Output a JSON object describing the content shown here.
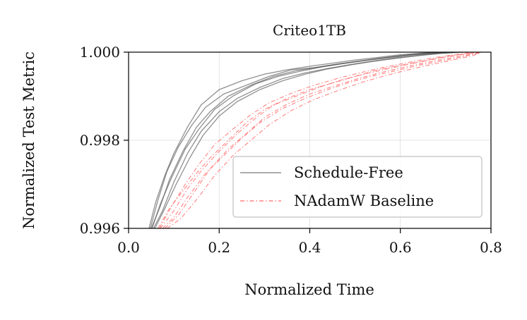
{
  "chart_data": {
    "type": "line",
    "title": "Criteo1TB",
    "xlabel": "Normalized Time",
    "ylabel": "Normalized Test Metric",
    "xlim": [
      0.0,
      0.8
    ],
    "ylim": [
      0.996,
      1.0
    ],
    "xticks": [
      "0.0",
      "0.2",
      "0.4",
      "0.6",
      "0.8"
    ],
    "xtick_values": [
      0.0,
      0.2,
      0.4,
      0.6,
      0.8
    ],
    "yticks": [
      "0.996",
      "0.998",
      "1.000"
    ],
    "ytick_values": [
      0.996,
      0.998,
      1.0
    ],
    "grid": true,
    "legend_position": "lower-right",
    "series": [
      {
        "name": "Schedule-Free",
        "color": "#555555",
        "style": "solid",
        "shown_in_legend": true,
        "x": [
          0.045,
          0.06,
          0.08,
          0.1,
          0.13,
          0.16,
          0.2,
          0.25,
          0.3,
          0.35,
          0.4,
          0.45,
          0.5,
          0.55,
          0.6,
          0.65,
          0.7
        ],
        "values": [
          0.996,
          0.9966,
          0.9972,
          0.9977,
          0.9983,
          0.9988,
          0.99915,
          0.99935,
          0.9995,
          0.9996,
          0.99968,
          0.99975,
          0.99982,
          0.99988,
          0.99994,
          0.99998,
          1.0
        ]
      },
      {
        "name": "Schedule-Free run 2",
        "color": "#555555",
        "style": "solid",
        "shown_in_legend": false,
        "x": [
          0.05,
          0.07,
          0.09,
          0.12,
          0.15,
          0.18,
          0.22,
          0.27,
          0.32,
          0.37,
          0.42,
          0.47,
          0.52,
          0.57,
          0.62,
          0.67,
          0.72
        ],
        "values": [
          0.996,
          0.9965,
          0.9971,
          0.99775,
          0.9983,
          0.99865,
          0.999,
          0.99925,
          0.99945,
          0.99958,
          0.99966,
          0.99974,
          0.99981,
          0.99988,
          0.99994,
          0.99998,
          1.0
        ]
      },
      {
        "name": "Schedule-Free run 3",
        "color": "#555555",
        "style": "solid",
        "shown_in_legend": false,
        "x": [
          0.055,
          0.075,
          0.1,
          0.13,
          0.16,
          0.2,
          0.24,
          0.29,
          0.34,
          0.39,
          0.44,
          0.49,
          0.54,
          0.59,
          0.64,
          0.69,
          0.73
        ],
        "values": [
          0.996,
          0.9964,
          0.99705,
          0.9977,
          0.9982,
          0.99865,
          0.99895,
          0.9992,
          0.9994,
          0.99953,
          0.99963,
          0.99972,
          0.9998,
          0.99987,
          0.99993,
          0.99998,
          1.0
        ]
      },
      {
        "name": "Schedule-Free run 4",
        "color": "#555555",
        "style": "solid",
        "shown_in_legend": false,
        "x": [
          0.048,
          0.065,
          0.085,
          0.11,
          0.14,
          0.17,
          0.21,
          0.26,
          0.31,
          0.36,
          0.41,
          0.46,
          0.51,
          0.56,
          0.61,
          0.66,
          0.71
        ],
        "values": [
          0.996,
          0.99665,
          0.9973,
          0.99785,
          0.99835,
          0.99875,
          0.99905,
          0.99925,
          0.99945,
          0.9996,
          0.99965,
          0.99973,
          0.9998,
          0.99987,
          0.99993,
          0.99998,
          1.0
        ]
      },
      {
        "name": "Schedule-Free run 5",
        "color": "#555555",
        "style": "solid",
        "shown_in_legend": false,
        "x": [
          0.052,
          0.07,
          0.095,
          0.125,
          0.155,
          0.19,
          0.23,
          0.28,
          0.33,
          0.38,
          0.43,
          0.48,
          0.53,
          0.58,
          0.63,
          0.68,
          0.72
        ],
        "values": [
          0.996,
          0.99655,
          0.99715,
          0.9978,
          0.99825,
          0.9987,
          0.999,
          0.99928,
          0.99945,
          0.99957,
          0.99967,
          0.99975,
          0.99982,
          0.99988,
          0.99994,
          0.99998,
          1.0
        ]
      },
      {
        "name": "Schedule-Free run 6",
        "color": "#555555",
        "style": "solid",
        "shown_in_legend": false,
        "x": [
          0.058,
          0.08,
          0.105,
          0.135,
          0.165,
          0.2,
          0.24,
          0.29,
          0.34,
          0.39,
          0.44,
          0.49,
          0.54,
          0.59,
          0.64,
          0.69,
          0.74
        ],
        "values": [
          0.996,
          0.99645,
          0.997,
          0.9976,
          0.99812,
          0.99855,
          0.99888,
          0.99915,
          0.99935,
          0.9995,
          0.99962,
          0.99971,
          0.99979,
          0.99986,
          0.99992,
          0.99997,
          1.0
        ]
      },
      {
        "name": "NAdamW Baseline",
        "color": "#ff5a5a",
        "style": "dashdot",
        "shown_in_legend": true,
        "x": [
          0.065,
          0.09,
          0.12,
          0.15,
          0.18,
          0.22,
          0.26,
          0.3,
          0.35,
          0.4,
          0.45,
          0.5,
          0.55,
          0.6,
          0.65,
          0.7,
          0.75,
          0.78
        ],
        "values": [
          0.996,
          0.99645,
          0.99685,
          0.99725,
          0.9976,
          0.998,
          0.9984,
          0.9987,
          0.99895,
          0.99915,
          0.9993,
          0.99945,
          0.9996,
          0.9997,
          0.9998,
          0.9999,
          0.99997,
          1.0
        ]
      },
      {
        "name": "NAdamW run 2",
        "color": "#ff5a5a",
        "style": "dashdot",
        "shown_in_legend": false,
        "x": [
          0.07,
          0.1,
          0.13,
          0.16,
          0.2,
          0.24,
          0.28,
          0.32,
          0.37,
          0.42,
          0.47,
          0.52,
          0.57,
          0.62,
          0.67,
          0.72,
          0.77
        ],
        "values": [
          0.996,
          0.9964,
          0.9969,
          0.9973,
          0.99775,
          0.99815,
          0.9985,
          0.9988,
          0.999,
          0.9992,
          0.99937,
          0.9995,
          0.99962,
          0.99973,
          0.99983,
          0.99992,
          1.0
        ]
      },
      {
        "name": "NAdamW run 3",
        "color": "#ff5a5a",
        "style": "dashdot",
        "shown_in_legend": false,
        "x": [
          0.075,
          0.1,
          0.13,
          0.17,
          0.21,
          0.25,
          0.29,
          0.34,
          0.39,
          0.44,
          0.49,
          0.54,
          0.59,
          0.64,
          0.69,
          0.74,
          0.78
        ],
        "values": [
          0.996,
          0.99625,
          0.9967,
          0.99725,
          0.99765,
          0.99805,
          0.9984,
          0.99872,
          0.99895,
          0.99915,
          0.99932,
          0.99946,
          0.99958,
          0.9997,
          0.9998,
          0.9999,
          1.0
        ]
      },
      {
        "name": "NAdamW run 4",
        "color": "#ff5a5a",
        "style": "dashdot",
        "shown_in_legend": false,
        "x": [
          0.08,
          0.11,
          0.14,
          0.18,
          0.22,
          0.26,
          0.3,
          0.35,
          0.4,
          0.45,
          0.5,
          0.55,
          0.6,
          0.65,
          0.7,
          0.75,
          0.78
        ],
        "values": [
          0.996,
          0.9963,
          0.99675,
          0.99735,
          0.9978,
          0.99815,
          0.99852,
          0.99882,
          0.99905,
          0.99922,
          0.99938,
          0.99952,
          0.99964,
          0.99975,
          0.99985,
          0.99994,
          1.0
        ]
      },
      {
        "name": "NAdamW run 5",
        "color": "#ff5a5a",
        "style": "dashdot",
        "shown_in_legend": false,
        "x": [
          0.068,
          0.095,
          0.125,
          0.155,
          0.19,
          0.23,
          0.27,
          0.31,
          0.36,
          0.41,
          0.46,
          0.51,
          0.56,
          0.61,
          0.66,
          0.71,
          0.76
        ],
        "values": [
          0.996,
          0.9965,
          0.997,
          0.99745,
          0.9979,
          0.99825,
          0.99858,
          0.99885,
          0.99907,
          0.99925,
          0.9994,
          0.99953,
          0.99965,
          0.99975,
          0.99985,
          0.99993,
          1.0
        ]
      },
      {
        "name": "NAdamW run 6",
        "color": "#ff5a5a",
        "style": "dashdot",
        "shown_in_legend": false,
        "x": [
          0.085,
          0.115,
          0.15,
          0.19,
          0.23,
          0.27,
          0.31,
          0.36,
          0.41,
          0.46,
          0.51,
          0.56,
          0.61,
          0.66,
          0.71,
          0.76,
          0.78
        ],
        "values": [
          0.996,
          0.99622,
          0.99665,
          0.9972,
          0.99765,
          0.998,
          0.99835,
          0.99868,
          0.99893,
          0.99912,
          0.9993,
          0.99945,
          0.99958,
          0.9997,
          0.99981,
          0.99992,
          1.0
        ]
      }
    ]
  }
}
